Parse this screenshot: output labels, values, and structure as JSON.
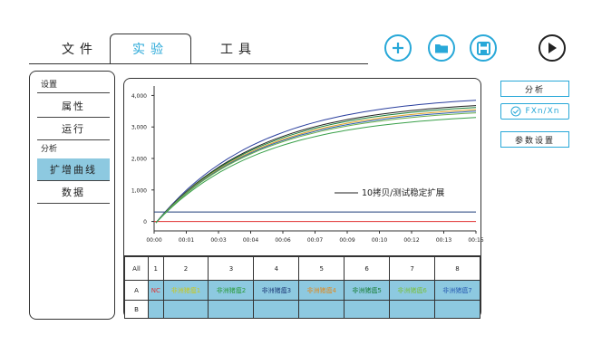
{
  "tabs": [
    "文件",
    "实验",
    "工具"
  ],
  "toolbar": {
    "add_icon": "plus-icon",
    "open_icon": "folder-icon",
    "save_icon": "save-icon",
    "run_icon": "play-icon"
  },
  "sidebar": {
    "section_settings": "设置",
    "item_properties": "属性",
    "item_run": "运行",
    "section_analysis": "分析",
    "item_amplification": "扩增曲线",
    "item_data": "数据"
  },
  "chart": {
    "legend_label": "10拷贝/测试稳定扩展"
  },
  "chart_data": {
    "type": "line",
    "x": [
      "00:00",
      "00:01",
      "00:03",
      "00:04",
      "00:06",
      "00:07",
      "00:09",
      "00:10",
      "00:12",
      "00:13",
      "00:15"
    ],
    "yticks": [
      "0",
      "1,000",
      "2,000",
      "3,000",
      "4,000"
    ],
    "ylim": [
      -300,
      4300
    ],
    "threshold": 300,
    "baseline": 0,
    "curve_endpoints": [
      3850,
      3680,
      3620,
      3550,
      3500,
      3450,
      3300
    ],
    "curve_colors": [
      "#2a3f9e",
      "#222222",
      "#1a7f3a",
      "#e0a020",
      "#2b5fb3",
      "#6ab04c",
      "#3aa04a"
    ],
    "threshold_color": "#1f3d7a",
    "baseline_color": "#e03030"
  },
  "table": {
    "header": [
      "All",
      "1",
      "2",
      "3",
      "4",
      "5",
      "6",
      "7",
      "8"
    ],
    "row_a_label": "A",
    "row_a": [
      "NC",
      "非洲猪瘟1",
      "非洲猪瘟2",
      "非洲猪瘟3",
      "非洲猪瘟4",
      "非洲猪瘟5",
      "非洲猪瘟6",
      "非洲猪瘟7"
    ],
    "row_a_colors": [
      "#e03030",
      "#c8c820",
      "#2a9a3a",
      "#1f3d7a",
      "#e08a20",
      "#1a7f3a",
      "#7ac040",
      "#2b5fb3"
    ],
    "row_b_label": "B"
  },
  "right_panel": {
    "analyze": "分析",
    "fx": "FXn/Xn",
    "params": "参数设置"
  }
}
